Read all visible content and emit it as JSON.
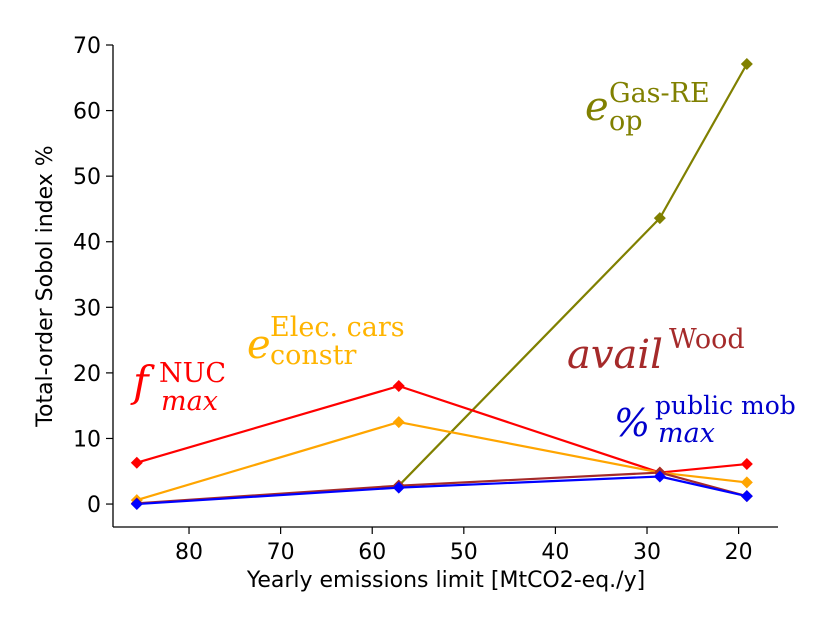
{
  "chart_data": {
    "type": "line",
    "title": "",
    "xlabel": "Yearly emissions limit [MtCO2-eq./y]",
    "ylabel": "Total-order Sobol index %",
    "xlim": [
      88.3,
      15.7
    ],
    "ylim": [
      -3.5,
      70
    ],
    "x_ticks": [
      80,
      70,
      60,
      50,
      40,
      30,
      20
    ],
    "y_ticks": [
      0,
      10,
      20,
      30,
      40,
      50,
      60,
      70
    ],
    "x_tick_labels": [
      "80",
      "70",
      "60",
      "50",
      "40",
      "30",
      "20"
    ],
    "y_tick_labels": [
      "0",
      "10",
      "20",
      "30",
      "40",
      "50",
      "60",
      "70"
    ],
    "grid": false,
    "series": [
      {
        "key": "gas_re",
        "color": "#808000",
        "points": [
          [
            57.1,
            2.8
          ],
          [
            28.6,
            43.6
          ],
          [
            19.1,
            67.1
          ]
        ]
      },
      {
        "key": "f_nuc",
        "color": "#ff0000",
        "points": [
          [
            85.7,
            6.3
          ],
          [
            57.1,
            18.0
          ],
          [
            28.6,
            4.8
          ],
          [
            19.1,
            6.1
          ]
        ]
      },
      {
        "key": "elec_cars",
        "color": "#ffa500",
        "points": [
          [
            85.7,
            0.6
          ],
          [
            57.1,
            12.5
          ],
          [
            28.6,
            4.8
          ],
          [
            19.1,
            3.3
          ]
        ]
      },
      {
        "key": "wood",
        "color": "#a52a2a",
        "points": [
          [
            85.7,
            0.1
          ],
          [
            57.1,
            2.8
          ],
          [
            28.6,
            4.8
          ],
          [
            19.1,
            1.2
          ]
        ]
      },
      {
        "key": "public_mob",
        "color": "#0000ff",
        "points": [
          [
            85.7,
            0.0
          ],
          [
            57.1,
            2.5
          ],
          [
            28.6,
            4.2
          ],
          [
            19.1,
            1.2
          ]
        ]
      }
    ],
    "annotations": {
      "gas_re": {
        "base": "e",
        "sup": "Gas-RE",
        "sub": "op",
        "color": "#808000"
      },
      "f_nuc": {
        "base": "f",
        "sup": "NUC",
        "sub": "max",
        "color": "#ff0000"
      },
      "elec_cars": {
        "base": "e",
        "sup": "Elec. cars",
        "sub": "constr",
        "color": "#ffb400"
      },
      "wood": {
        "base": "avail",
        "sup": "Wood",
        "sub": "",
        "color": "#a52a2a"
      },
      "public_mob": {
        "base": "%",
        "sup": "public mob",
        "sub": "max",
        "color": "#0000cc"
      }
    }
  }
}
